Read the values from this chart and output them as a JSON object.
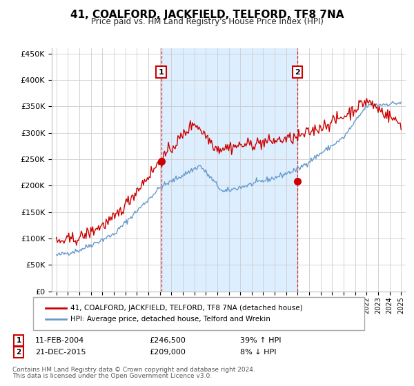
{
  "title": "41, COALFORD, JACKFIELD, TELFORD, TF8 7NA",
  "subtitle": "Price paid vs. HM Land Registry's House Price Index (HPI)",
  "legend_line1": "41, COALFORD, JACKFIELD, TELFORD, TF8 7NA (detached house)",
  "legend_line2": "HPI: Average price, detached house, Telford and Wrekin",
  "annotation1_date": "11-FEB-2004",
  "annotation1_price": "£246,500",
  "annotation1_hpi": "39% ↑ HPI",
  "annotation2_date": "21-DEC-2015",
  "annotation2_price": "£209,000",
  "annotation2_hpi": "8% ↓ HPI",
  "footer1": "Contains HM Land Registry data © Crown copyright and database right 2024.",
  "footer2": "This data is licensed under the Open Government Licence v3.0.",
  "sale1_year": 2004.12,
  "sale1_price": 246500,
  "sale2_year": 2015.97,
  "sale2_price": 209000,
  "hpi_color": "#6699cc",
  "price_color": "#cc0000",
  "shade_color": "#ddeeff",
  "ylim_min": 0,
  "ylim_max": 460000,
  "ytick_step": 50000,
  "background_color": "#ffffff",
  "grid_color": "#cccccc",
  "xmin": 1995,
  "xmax": 2025
}
